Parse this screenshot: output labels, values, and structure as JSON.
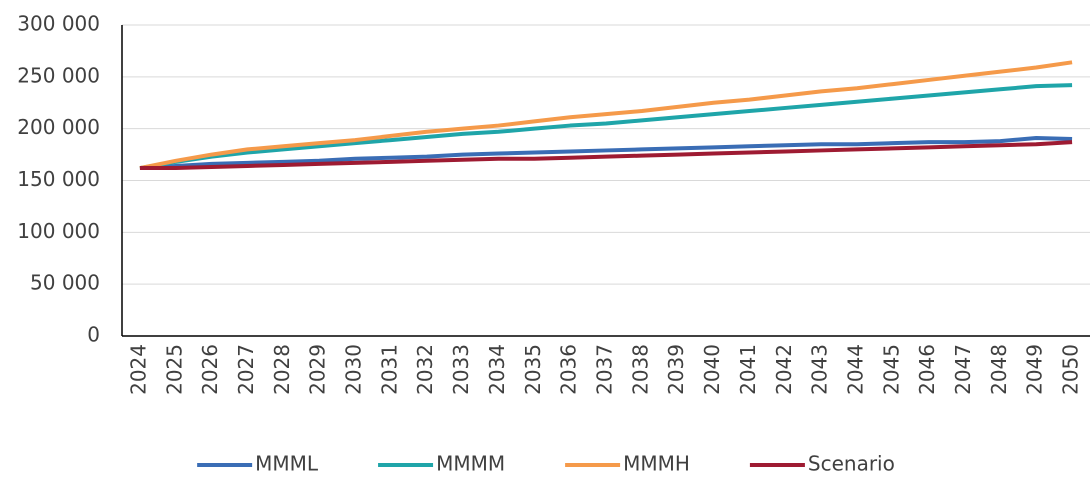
{
  "chart_data": {
    "type": "line",
    "categories": [
      "2024",
      "2025",
      "2026",
      "2027",
      "2028",
      "2029",
      "2030",
      "2031",
      "2032",
      "2033",
      "2034",
      "2035",
      "2036",
      "2037",
      "2038",
      "2039",
      "2040",
      "2041",
      "2042",
      "2043",
      "2044",
      "2045",
      "2046",
      "2047",
      "2048",
      "2049",
      "2050"
    ],
    "series": [
      {
        "name": "MMML",
        "color": "#3a6db5",
        "values": [
          162000,
          164000,
          166000,
          167000,
          168000,
          169000,
          171000,
          172000,
          173000,
          175000,
          176000,
          177000,
          178000,
          179000,
          180000,
          181000,
          182000,
          183000,
          184000,
          185000,
          185000,
          186000,
          187000,
          187000,
          188000,
          191000,
          190000
        ]
      },
      {
        "name": "MMMM",
        "color": "#1fa5a9",
        "values": [
          162000,
          168000,
          173000,
          177000,
          180000,
          183000,
          186000,
          189000,
          192000,
          195000,
          197000,
          200000,
          203000,
          205000,
          208000,
          211000,
          214000,
          217000,
          220000,
          223000,
          226000,
          229000,
          232000,
          235000,
          238000,
          241000,
          242000
        ]
      },
      {
        "name": "MMMH",
        "color": "#f59a4a",
        "values": [
          162000,
          169000,
          175000,
          180000,
          183000,
          186000,
          189000,
          193000,
          197000,
          200000,
          203000,
          207000,
          211000,
          214000,
          217000,
          221000,
          225000,
          228000,
          232000,
          236000,
          239000,
          243000,
          247000,
          251000,
          255000,
          259000,
          264000
        ]
      },
      {
        "name": "Scenario",
        "color": "#9e1b32",
        "values": [
          162000,
          162000,
          163000,
          164000,
          165000,
          166000,
          167000,
          168000,
          169000,
          170000,
          171000,
          171000,
          172000,
          173000,
          174000,
          175000,
          176000,
          177000,
          178000,
          179000,
          180000,
          181000,
          182000,
          183000,
          184000,
          185000,
          187000
        ]
      }
    ],
    "ylim": [
      0,
      300000
    ],
    "yticks": [
      0,
      {
        "value": 50000,
        "label": "50 000"
      },
      {
        "value": 100000,
        "label": "100 000"
      },
      {
        "value": 150000,
        "label": "150 000"
      },
      {
        "value": 200000,
        "label": "200 000"
      },
      {
        "value": 250000,
        "label": "250 000"
      },
      {
        "value": 300000,
        "label": "300 000"
      }
    ],
    "grid": true,
    "legend": "bottom"
  }
}
